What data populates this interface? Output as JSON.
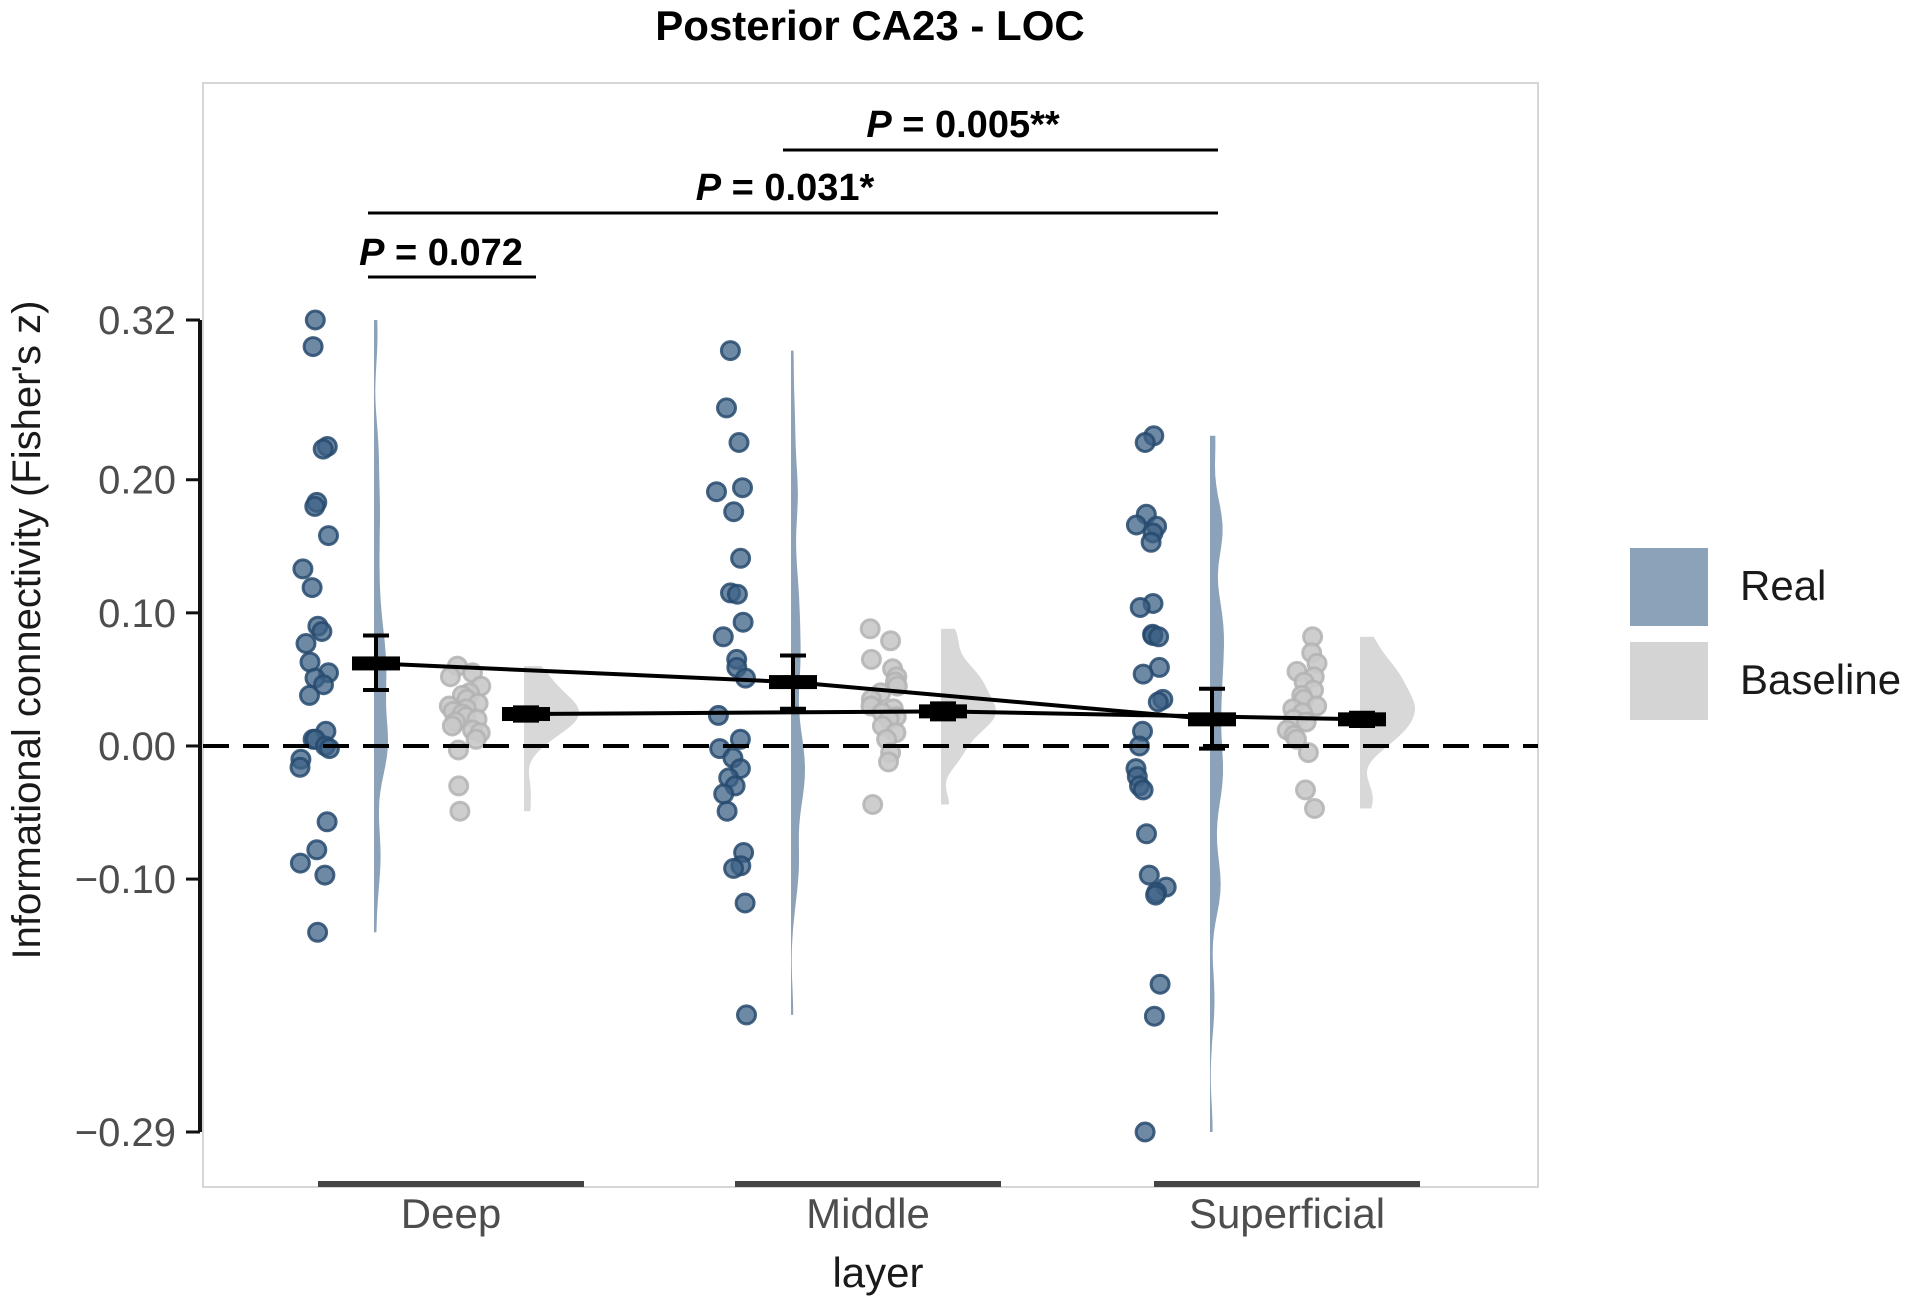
{
  "chart_data": {
    "type": "raincloud",
    "title": "Posterior CA23 - LOC",
    "xlabel": "layer",
    "ylabel": "Informational connectivity (Fisher's z)",
    "categories": [
      "Deep",
      "Middle",
      "Superficial"
    ],
    "ylim": [
      -0.29,
      0.32
    ],
    "yticks": [
      0.32,
      0.2,
      0.1,
      0.0,
      -0.1,
      -0.29
    ],
    "ytick_labels": [
      "0.32",
      "0.20",
      "0.10",
      "0.00",
      "−0.10",
      "−0.29"
    ],
    "reference_line": 0,
    "legend": {
      "title": "",
      "placement": "right"
    },
    "series": [
      {
        "name": "Real",
        "color": "#8ca2b8",
        "point_color": "#3d6185",
        "point_edge": "#274a6f",
        "means": [
          0.062,
          0.048,
          0.02
        ],
        "ci": [
          [
            0.042,
            0.083
          ],
          [
            0.028,
            0.068
          ],
          [
            -0.002,
            0.043
          ]
        ],
        "points": [
          [
            0.32,
            0.3,
            0.225,
            0.223,
            0.183,
            0.18,
            0.158,
            0.133,
            0.119,
            0.09,
            0.086,
            0.077,
            0.063,
            0.055,
            0.051,
            0.046,
            0.038,
            0.011,
            0.005,
            0.005,
            0.0,
            -0.002,
            -0.01,
            -0.016,
            -0.057,
            -0.078,
            -0.088,
            -0.097,
            -0.14
          ],
          [
            0.297,
            0.254,
            0.228,
            0.194,
            0.191,
            0.176,
            0.141,
            0.115,
            0.114,
            0.093,
            0.082,
            0.065,
            0.059,
            0.051,
            0.023,
            0.005,
            -0.002,
            -0.009,
            -0.017,
            -0.024,
            -0.03,
            -0.036,
            -0.049,
            -0.08,
            -0.09,
            -0.092,
            -0.118,
            -0.202
          ],
          [
            0.233,
            0.228,
            0.174,
            0.166,
            0.165,
            0.16,
            0.153,
            0.107,
            0.104,
            0.084,
            0.083,
            0.082,
            0.059,
            0.054,
            0.035,
            0.033,
            0.011,
            0.0,
            -0.017,
            -0.023,
            -0.03,
            -0.033,
            -0.066,
            -0.097,
            -0.106,
            -0.11,
            -0.112,
            -0.179,
            -0.203,
            -0.29
          ]
        ]
      },
      {
        "name": "Baseline",
        "color": "#d4d4d4",
        "point_color": "#c9c9c9",
        "point_edge": "#b3b3b3",
        "means": [
          0.024,
          0.026,
          0.02
        ],
        "ci": [
          [
            0.019,
            0.029
          ],
          [
            0.02,
            0.032
          ],
          [
            0.015,
            0.025
          ]
        ],
        "points": [
          [
            0.06,
            0.055,
            0.052,
            0.045,
            0.04,
            0.038,
            0.035,
            0.032,
            0.03,
            0.028,
            0.026,
            0.024,
            0.022,
            0.02,
            0.018,
            0.015,
            0.012,
            0.01,
            0.005,
            -0.003,
            -0.03,
            -0.049
          ],
          [
            0.088,
            0.079,
            0.065,
            0.058,
            0.052,
            0.048,
            0.045,
            0.04,
            0.035,
            0.03,
            0.028,
            0.025,
            0.022,
            0.02,
            0.015,
            0.01,
            0.005,
            -0.005,
            -0.012,
            -0.044
          ],
          [
            0.082,
            0.07,
            0.062,
            0.056,
            0.052,
            0.048,
            0.042,
            0.038,
            0.035,
            0.03,
            0.028,
            0.025,
            0.02,
            0.018,
            0.012,
            0.008,
            0.005,
            -0.005,
            -0.033,
            -0.047
          ]
        ]
      }
    ],
    "comparisons": [
      {
        "label": "P = 0.072",
        "p_symbol": "P",
        "text": " = 0.072",
        "from": "Deep (Real)",
        "to": "Deep (Baseline)"
      },
      {
        "label": "P = 0.031*",
        "p_symbol": "P",
        "text": " = 0.031*",
        "from": "Deep",
        "to": "Superficial"
      },
      {
        "label": "P = 0.005**",
        "p_symbol": "P",
        "text": " = 0.005**",
        "from": "Middle",
        "to": "Superficial"
      }
    ]
  }
}
